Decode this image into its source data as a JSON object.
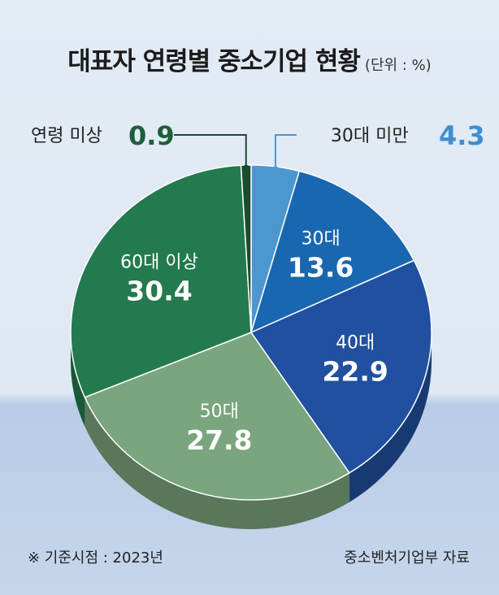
{
  "title": "대표자 연령별 중소기업 현황",
  "unit": "(단위 : %)",
  "footnote": "※ 기준시점 : 2023년",
  "source": "중소벤처기업부 자료",
  "chart_data": {
    "type": "pie",
    "title": "대표자 연령별 중소기업 현황",
    "unit": "(단위 : %)",
    "categories": [
      "30대 미만",
      "30대",
      "40대",
      "50대",
      "60대 이상",
      "연령 미상"
    ],
    "values": [
      4.3,
      13.6,
      22.9,
      27.8,
      30.4,
      0.9
    ],
    "value_labels": [
      "4.3",
      "13.6",
      "22.9",
      "27.8",
      "30.4",
      "0.9"
    ],
    "colors": [
      "#4c97cf",
      "#1967b0",
      "#2150a0",
      "#7aa57e",
      "#237a4e",
      "#184d2f"
    ],
    "label_colors": [
      "#3f8ed0",
      "#ffffff",
      "#ffffff",
      "#ffffff",
      "#ffffff",
      "#1f5e3a"
    ],
    "label_position": [
      "outside",
      "inside",
      "inside",
      "inside",
      "inside",
      "outside"
    ]
  }
}
